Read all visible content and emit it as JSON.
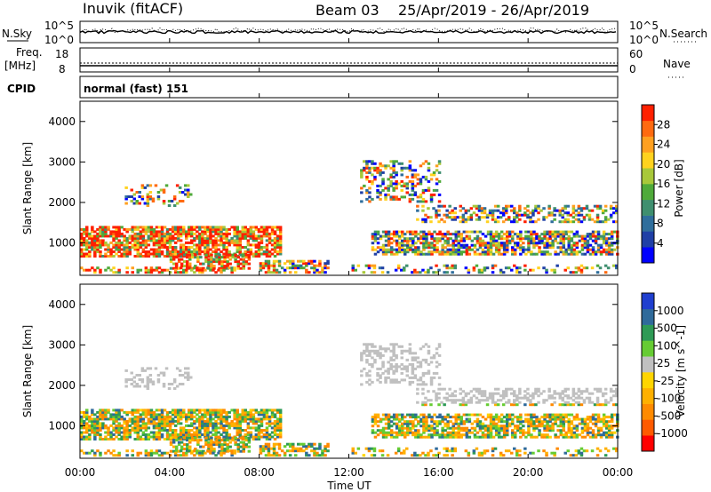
{
  "header": {
    "station": "Inuvik (fitACF)",
    "beam": "Beam 03",
    "date_range": "25/Apr/2019 - 26/Apr/2019"
  },
  "summary_panels": {
    "nsky": {
      "label": "N.Sky",
      "ticks": [
        "10^5",
        "10^0"
      ],
      "right_label": "N.Search",
      "right_ticks": [
        "10^5",
        "10^0"
      ]
    },
    "freq": {
      "label_top": "Freq.",
      "label_bottom": "[MHz]",
      "ticks": [
        "18",
        "8"
      ],
      "right_label": "Nave",
      "right_ticks": [
        "60",
        "0"
      ]
    },
    "cpid": {
      "label": "CPID",
      "mode_text": "normal (fast) 151"
    }
  },
  "colors": {
    "power_scale": [
      "#0000ff",
      "#1f3fa6",
      "#2f6e9c",
      "#3f8f6f",
      "#4faa3a",
      "#a8c83a",
      "#ffd21f",
      "#ffa020",
      "#ff6a10",
      "#ff2000"
    ],
    "velocity_scale": [
      "#ff0000",
      "#ff5a00",
      "#ff8a00",
      "#ffb000",
      "#ffd500",
      "#c0c0c0",
      "#66cc33",
      "#2e9a55",
      "#2f6a9a",
      "#1f3fcf"
    ]
  },
  "chart_data": [
    {
      "type": "heatmap",
      "name": "power",
      "ylabel": "Slant Range [km]",
      "yticks": [
        1000,
        2000,
        3000,
        4000
      ],
      "ylim": [
        200,
        4500
      ],
      "xlim": [
        0,
        24
      ],
      "colorbar": {
        "label": "Power [dB]",
        "ticks": [
          "4",
          "8",
          "12",
          "16",
          "20",
          "24",
          "28"
        ],
        "range": [
          0,
          30
        ]
      }
    },
    {
      "type": "heatmap",
      "name": "velocity",
      "ylabel": "Slant Range [km]",
      "yticks": [
        1000,
        2000,
        3000,
        4000
      ],
      "ylim": [
        200,
        4500
      ],
      "xlim": [
        0,
        24
      ],
      "xlabel": "Time UT",
      "xticks": [
        "00:00",
        "04:00",
        "08:00",
        "12:00",
        "16:00",
        "20:00",
        "00:00"
      ],
      "colorbar": {
        "label": "Velocity [m s^-1]",
        "ticks": [
          "1000",
          "500",
          "100",
          "25",
          "-25",
          "-100",
          "-500",
          "-1000"
        ]
      }
    }
  ]
}
